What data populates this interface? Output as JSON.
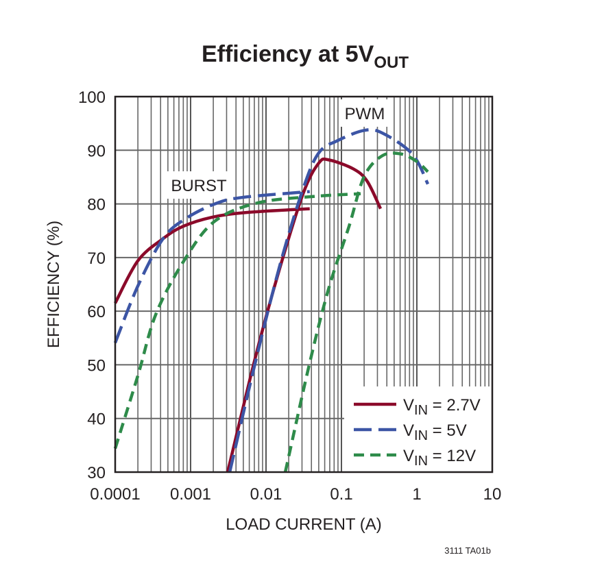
{
  "chart_data": {
    "type": "line",
    "title": "Efficiency at 5V",
    "title_subscript": "OUT",
    "xlabel": "LOAD CURRENT (A)",
    "ylabel": "EFFICIENCY (%)",
    "x_scale": "log",
    "xlim": [
      0.0001,
      10
    ],
    "ylim": [
      30,
      100
    ],
    "x_ticks": [
      "0.0001",
      "0.001",
      "0.01",
      "0.1",
      "1",
      "10"
    ],
    "y_ticks": [
      "30",
      "40",
      "50",
      "60",
      "70",
      "80",
      "90",
      "100"
    ],
    "grid": true,
    "legend_position": "bottom-right",
    "annotations": {
      "burst": "BURST",
      "pwm": "PWM"
    },
    "footnote": "3111 TA01b",
    "series": [
      {
        "name": "VIN = 2.7V",
        "legend_main": "V",
        "legend_sub": "IN",
        "legend_rest": " = 2.7V",
        "color": "#8b0a2a",
        "style": "solid",
        "segments": [
          {
            "mode": "BURST",
            "x": [
              0.0001,
              0.0002,
              0.00043,
              0.00079,
              0.0019,
              0.0055,
              0.038
            ],
            "y": [
              61.5,
              69.4,
              73.5,
              75.8,
              77.5,
              78.4,
              79.1
            ]
          },
          {
            "mode": "PWM",
            "x": [
              0.0031,
              0.0072,
              0.0145,
              0.031,
              0.05,
              0.068,
              0.145,
              0.22,
              0.33
            ],
            "y": [
              30,
              51.3,
              67,
              81.9,
              87.6,
              88.2,
              86.5,
              84.2,
              79.1
            ]
          }
        ]
      },
      {
        "name": "VIN = 5V",
        "legend_main": "V",
        "legend_sub": "IN",
        "legend_rest": " = 5V",
        "color": "#3c55a5",
        "style": "long-dash",
        "segments": [
          {
            "mode": "BURST",
            "x": [
              0.0001,
              0.0002,
              0.00043,
              0.00085,
              0.0021,
              0.0048,
              0.038
            ],
            "y": [
              54.1,
              64.7,
              73.5,
              77.2,
              80,
              81.2,
              82.3
            ]
          },
          {
            "mode": "PWM",
            "x": [
              0.0033,
              0.0072,
              0.0155,
              0.031,
              0.05,
              0.089,
              0.2,
              0.35,
              0.87,
              1.4
            ],
            "y": [
              30,
              50.4,
              68.9,
              82.8,
              89.5,
              91.8,
              93.7,
              93.2,
              89.3,
              83.7
            ]
          }
        ]
      },
      {
        "name": "VIN = 12V",
        "legend_main": "V",
        "legend_sub": "IN",
        "legend_rest": " = 12V",
        "color": "#2e8b4a",
        "style": "short-dash",
        "segments": [
          {
            "mode": "BURST",
            "x": [
              0.0001,
              0.0002,
              0.00035,
              0.00085,
              0.0021,
              0.0078,
              0.044,
              0.18
            ],
            "y": [
              34.4,
              48,
              59.6,
              69.8,
              76.8,
              80.2,
              81.4,
              81.9
            ]
          },
          {
            "mode": "PWM",
            "x": [
              0.018,
              0.038,
              0.068,
              0.126,
              0.2,
              0.35,
              0.62,
              1.0,
              1.4
            ],
            "y": [
              30,
              50.4,
              64.3,
              75.8,
              85.1,
              89,
              89.3,
              87.9,
              86
            ]
          }
        ]
      }
    ]
  }
}
